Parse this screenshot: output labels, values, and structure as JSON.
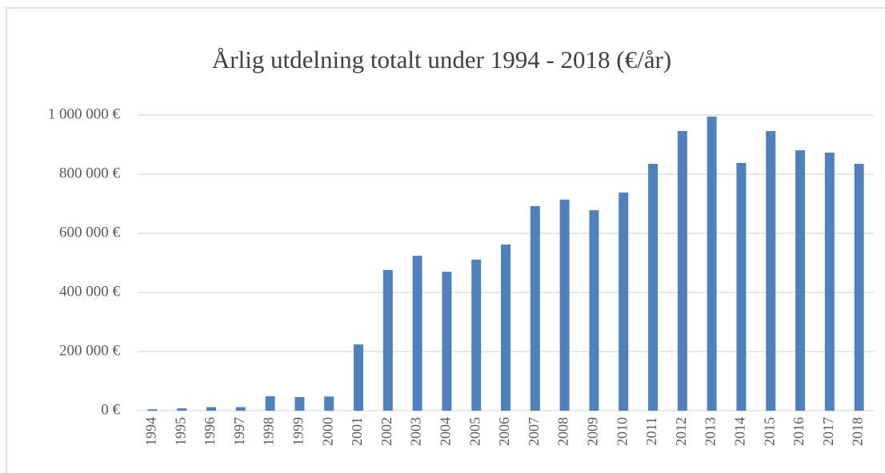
{
  "chart_data": {
    "type": "bar",
    "title": "Årlig utdelning totalt under 1994 - 2018 (€/år)",
    "categories": [
      "1994",
      "1995",
      "1996",
      "1997",
      "1998",
      "1999",
      "2000",
      "2001",
      "2002",
      "2003",
      "2004",
      "2005",
      "2006",
      "2007",
      "2008",
      "2009",
      "2010",
      "2011",
      "2012",
      "2013",
      "2014",
      "2015",
      "2016",
      "2017",
      "2018"
    ],
    "values": [
      5000,
      8000,
      12000,
      12000,
      49000,
      46000,
      48000,
      224000,
      476000,
      524000,
      470000,
      511000,
      562000,
      692000,
      714000,
      678000,
      738000,
      835000,
      946000,
      995000,
      838000,
      946000,
      881000,
      873000,
      835000
    ],
    "color": "#4f81bd",
    "ylim": [
      0,
      1000000
    ],
    "yticks": [
      {
        "value": 0,
        "label": "0 €"
      },
      {
        "value": 200000,
        "label": "200 000 €"
      },
      {
        "value": 400000,
        "label": "400 000 €"
      },
      {
        "value": 600000,
        "label": "600 000 €"
      },
      {
        "value": 800000,
        "label": "800 000 €"
      },
      {
        "value": 1000000,
        "label": "1 000 000 €"
      }
    ],
    "grid": true
  }
}
